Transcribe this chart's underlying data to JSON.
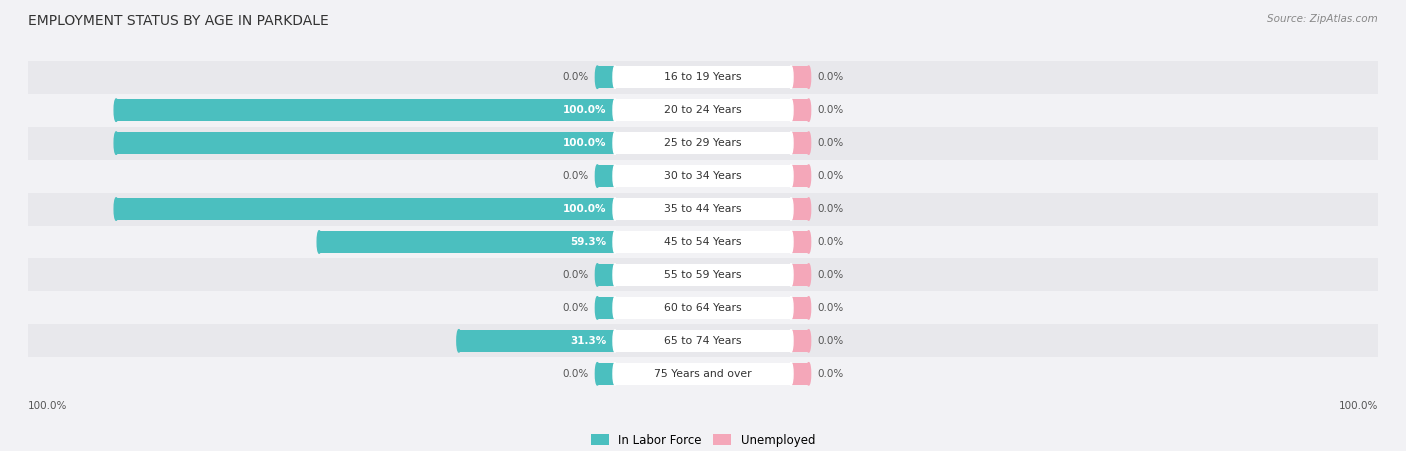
{
  "title": "EMPLOYMENT STATUS BY AGE IN PARKDALE",
  "source": "Source: ZipAtlas.com",
  "categories": [
    "16 to 19 Years",
    "20 to 24 Years",
    "25 to 29 Years",
    "30 to 34 Years",
    "35 to 44 Years",
    "45 to 54 Years",
    "55 to 59 Years",
    "60 to 64 Years",
    "65 to 74 Years",
    "75 Years and over"
  ],
  "in_labor_force": [
    0.0,
    100.0,
    100.0,
    0.0,
    100.0,
    59.3,
    0.0,
    0.0,
    31.3,
    0.0
  ],
  "unemployed": [
    0.0,
    0.0,
    0.0,
    0.0,
    0.0,
    0.0,
    0.0,
    0.0,
    0.0,
    0.0
  ],
  "labor_color": "#4BBFBF",
  "unemployed_color": "#F4A7B9",
  "row_bg_even": "#F2F2F5",
  "row_bg_odd": "#E8E8EC",
  "label_color": "#555555",
  "label_white": "#FFFFFF",
  "max_value": 100.0,
  "figsize": [
    14.06,
    4.51
  ],
  "dpi": 100,
  "bg_color": "#F2F2F5"
}
